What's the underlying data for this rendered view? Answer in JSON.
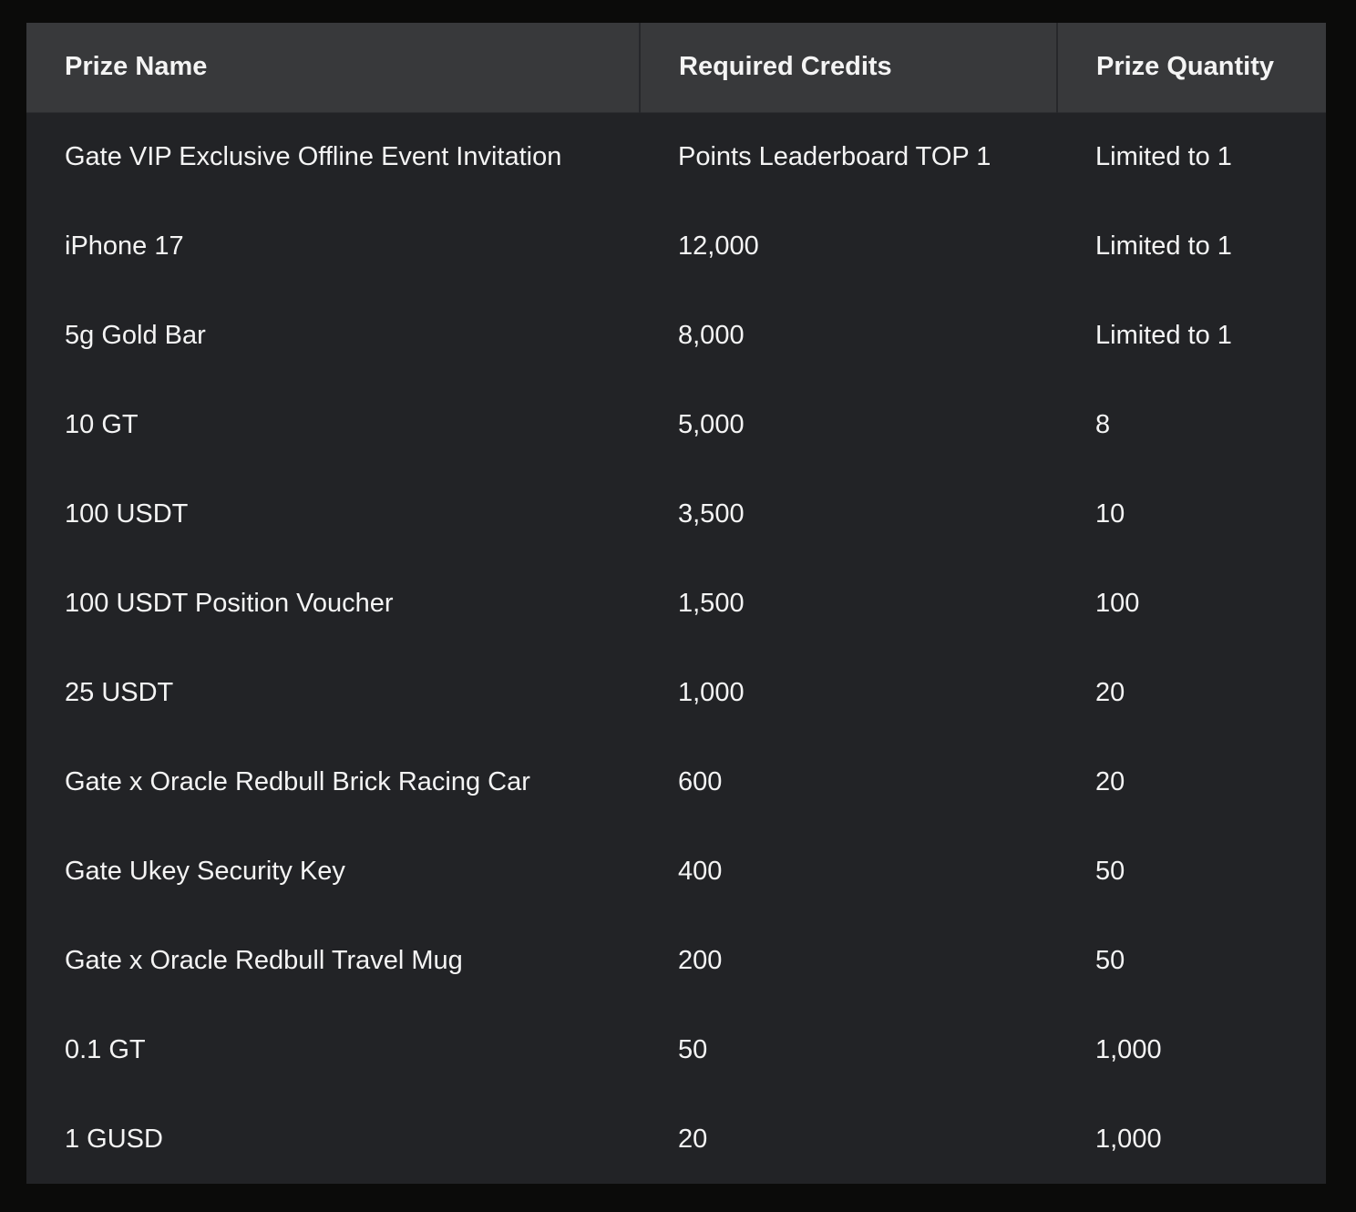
{
  "headers": [
    "Prize Name",
    "Required Credits",
    "Prize Quantity"
  ],
  "rows": [
    [
      "Gate VIP Exclusive Offline Event Invitation",
      "Points Leaderboard TOP 1",
      "Limited to 1"
    ],
    [
      "iPhone 17",
      "12,000",
      "Limited to 1"
    ],
    [
      "5g Gold Bar",
      "8,000",
      "Limited to 1"
    ],
    [
      "10 GT",
      "5,000",
      "8"
    ],
    [
      "100 USDT",
      "3,500",
      "10"
    ],
    [
      "100 USDT Position Voucher",
      "1,500",
      "100"
    ],
    [
      "25 USDT",
      "1,000",
      "20"
    ],
    [
      "Gate x Oracle Redbull Brick Racing Car",
      "600",
      "20"
    ],
    [
      "Gate Ukey Security Key",
      "400",
      "50"
    ],
    [
      "Gate x Oracle Redbull Travel Mug",
      "200",
      "50"
    ],
    [
      "0.1 GT",
      "50",
      "1,000"
    ],
    [
      "1 GUSD",
      "20",
      "1,000"
    ]
  ]
}
